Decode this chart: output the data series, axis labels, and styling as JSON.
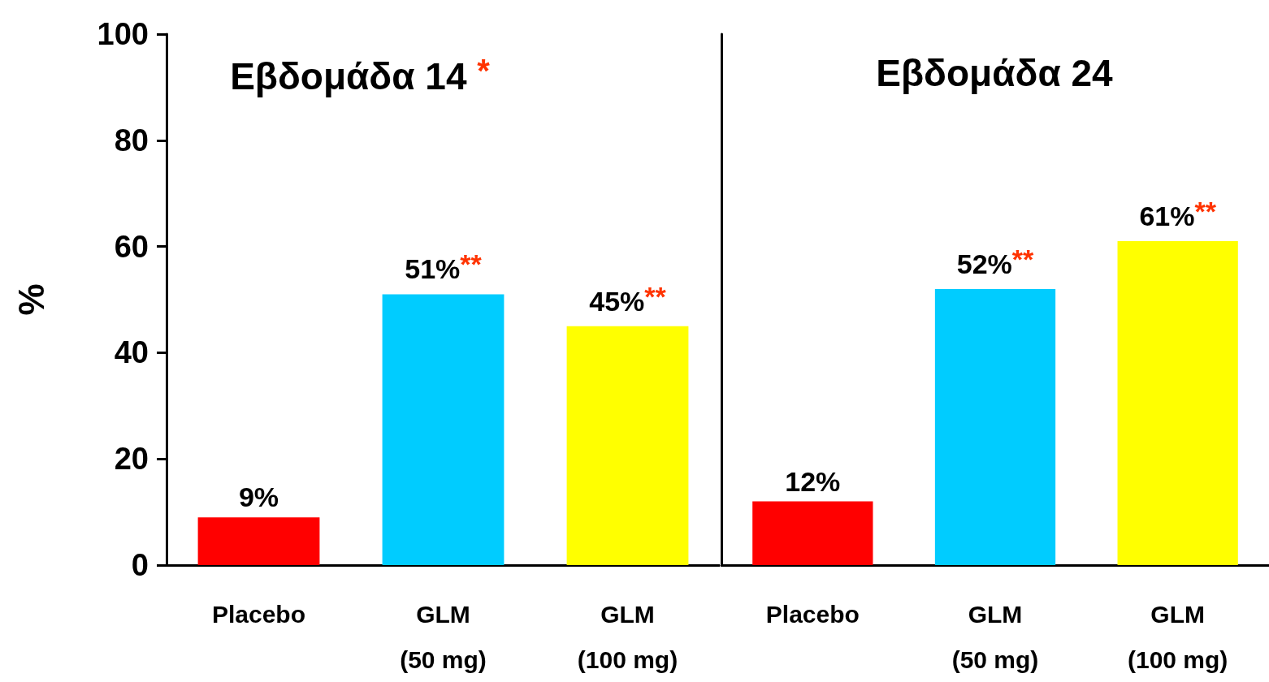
{
  "chart_data": [
    {
      "type": "bar",
      "title": "Εβδομάδα 14 *",
      "ylabel": "%",
      "categories": [
        "Placebo",
        "GLM\n(50 mg)",
        "GLM\n(100 mg)"
      ],
      "values": [
        9,
        51,
        45
      ],
      "colors": [
        "#ff0000",
        "#00ccff",
        "#ffff00"
      ],
      "value_labels": [
        "9%",
        "51%**",
        "45%**"
      ],
      "ylim": [
        0,
        100
      ],
      "yticks": [
        0,
        20,
        40,
        60,
        80,
        100
      ]
    },
    {
      "type": "bar",
      "title": "Εβδομάδα 24",
      "categories": [
        "Placebo",
        "GLM\n(50 mg)",
        "GLM\n(100 mg)"
      ],
      "values": [
        12,
        52,
        61
      ],
      "colors": [
        "#ff0000",
        "#00ccff",
        "#ffff00"
      ],
      "value_labels": [
        "12%",
        "52%**",
        "61%**"
      ],
      "ylim": [
        0,
        100
      ],
      "yticks": [
        0,
        20,
        40,
        60,
        80,
        100
      ],
      "tick_labels": "x"
    }
  ]
}
